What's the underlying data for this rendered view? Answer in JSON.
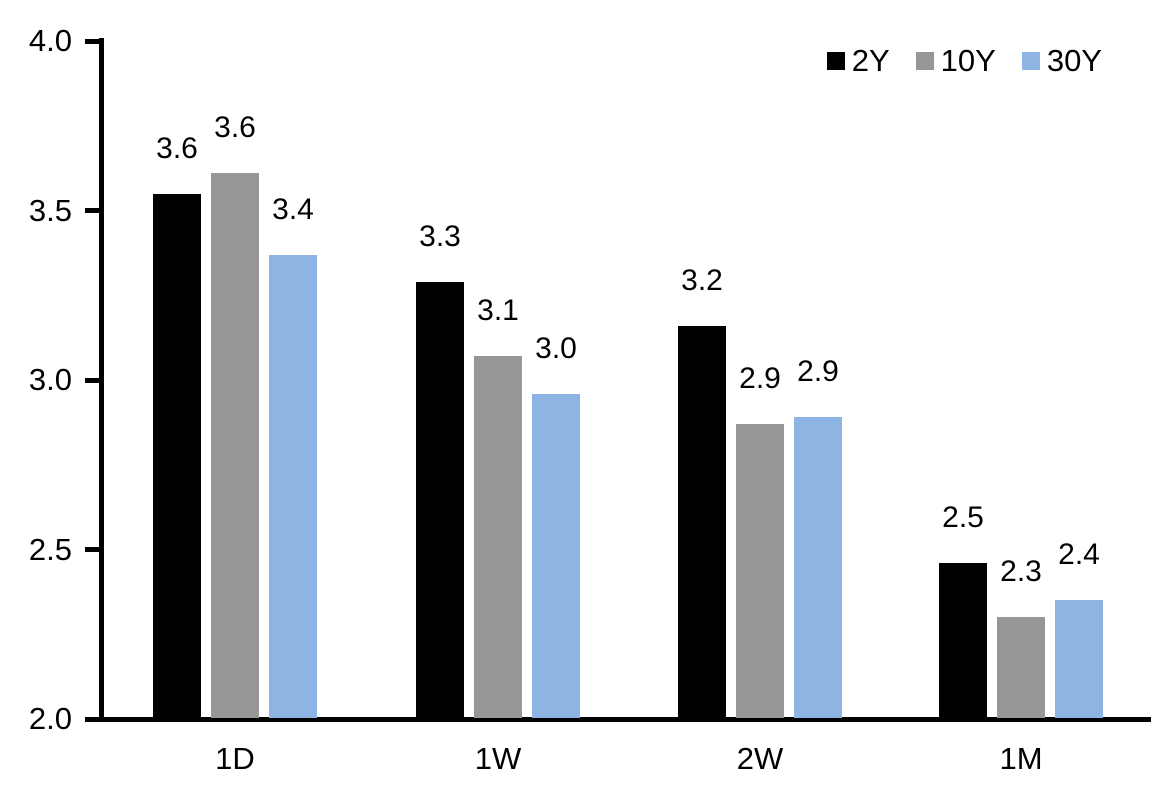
{
  "chart_data": {
    "type": "bar",
    "title": "",
    "xlabel": "",
    "ylabel": "",
    "categories": [
      "1D",
      "1W",
      "2W",
      "1M"
    ],
    "series": [
      {
        "name": "2Y",
        "color": "#000000",
        "values": [
          3.55,
          3.29,
          3.16,
          2.46
        ],
        "labels": [
          "3.6",
          "3.3",
          "3.2",
          "2.5"
        ]
      },
      {
        "name": "10Y",
        "color": "#979797",
        "values": [
          3.61,
          3.07,
          2.87,
          2.3
        ],
        "labels": [
          "3.6",
          "3.1",
          "2.9",
          "2.3"
        ]
      },
      {
        "name": "30Y",
        "color": "#8DB4E2",
        "values": [
          3.37,
          2.96,
          2.89,
          2.35
        ],
        "labels": [
          "3.4",
          "3.0",
          "2.9",
          "2.4"
        ]
      }
    ],
    "ylim": [
      2.0,
      4.0
    ],
    "yticks": [
      "2.0",
      "2.5",
      "3.0",
      "3.5",
      "4.0"
    ],
    "grid": false,
    "legend_position": "top-right",
    "axis_color": "#000000",
    "text_color": "#000000",
    "background_color": "#FFFFFF"
  }
}
